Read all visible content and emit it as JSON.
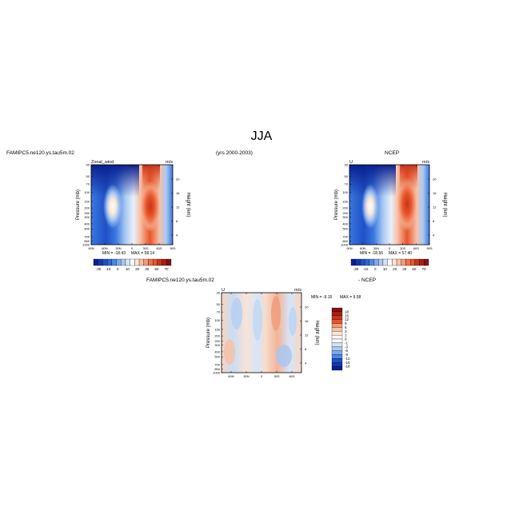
{
  "figure": {
    "title": "JJA",
    "case_name": "FAMIPC5.ne120.ys.tau5m.02",
    "years": "(yrs 2000-2003)",
    "obs_name": "NCEP",
    "diff_obs_label": "- NCEP"
  },
  "colors": {
    "blue_dark": "#0a1f8f",
    "blue_mid": "#3a78e0",
    "blue_light": "#a9c9f2",
    "white": "#ffffff",
    "red_light": "#f6c2a8",
    "red_mid": "#e8542a",
    "red_dark": "#8a0d10"
  },
  "chart_data": [
    {
      "type": "heatmap",
      "panel": "model",
      "left_label": "Zonal_wind",
      "units": "m/s",
      "ylabel": "Pressure (mb)",
      "ylabel_right": "Height (km)",
      "x_ticks": [
        "90N",
        "60N",
        "30N",
        "0",
        "30S",
        "60S",
        "90S"
      ],
      "y_ticks": [
        "30",
        "50",
        "70",
        "100",
        "150",
        "200",
        "250",
        "300",
        "400",
        "500",
        "700",
        "850",
        "1000"
      ],
      "height_ticks": [
        "20",
        "16",
        "12",
        "8",
        "4"
      ],
      "min": "-18.43",
      "max": "58.14",
      "min_label": "MIN =",
      "max_label": "MAX ="
    },
    {
      "type": "heatmap",
      "panel": "obs",
      "left_label": "U",
      "units": "m/s",
      "ylabel": "Pressure (mb)",
      "ylabel_right": "Height (km)",
      "x_ticks": [
        "90N",
        "60N",
        "30N",
        "0",
        "30S",
        "60S",
        "90S"
      ],
      "y_ticks": [
        "30",
        "50",
        "70",
        "100",
        "150",
        "200",
        "250",
        "300",
        "400",
        "500",
        "700",
        "850",
        "1000"
      ],
      "height_ticks": [
        "20",
        "16",
        "12",
        "8",
        "4"
      ],
      "min": "-18.56",
      "max": "57.40",
      "min_label": "MIN =",
      "max_label": "MAX ="
    },
    {
      "type": "heatmap",
      "panel": "difference",
      "left_label": "U",
      "units": "m/s",
      "ylabel": "Pressure (mb)",
      "ylabel_right": "Height (km)",
      "x_ticks": [
        "60N",
        "30N",
        "0",
        "30S",
        "60S"
      ],
      "y_ticks": [
        "30",
        "50",
        "70",
        "100",
        "150",
        "200",
        "250",
        "300",
        "400",
        "500",
        "700",
        "850",
        "1000"
      ],
      "height_ticks": [
        "20",
        "16",
        "12",
        "8",
        "4"
      ],
      "min": "-9.15",
      "max": "9.58",
      "min_label": "MIN =",
      "max_label": "MAX ="
    }
  ],
  "colorbar_main": [
    "-30",
    "-10",
    "0",
    "10",
    "20",
    "30",
    "50",
    "70"
  ],
  "colorbar_diff": [
    "18",
    "15",
    "12",
    "9",
    "6",
    "3",
    "1",
    "0",
    "-1",
    "-3",
    "-6",
    "-9",
    "-12",
    "-15",
    "-18"
  ]
}
